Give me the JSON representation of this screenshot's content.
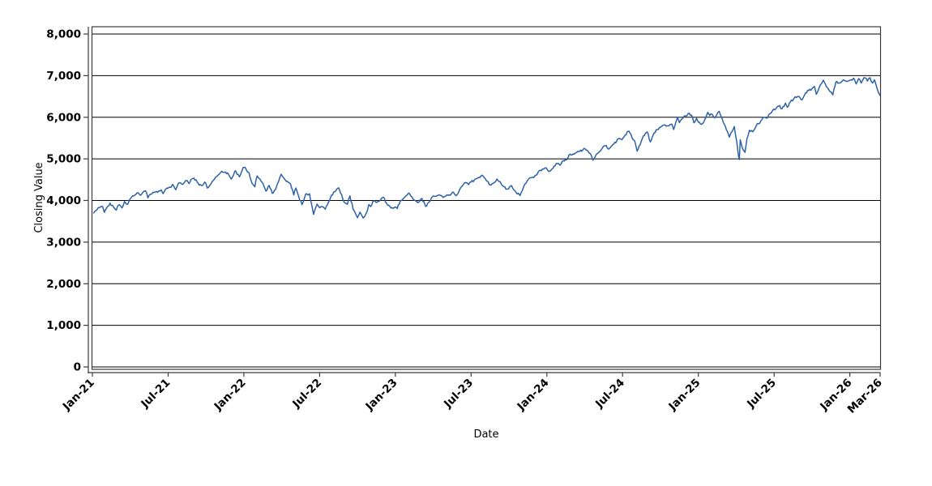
{
  "figure": {
    "background": "#ffffff",
    "title": ""
  },
  "chart_data": {
    "type": "line",
    "title": "",
    "xlabel": "Date",
    "ylabel": "Closing Value",
    "legend": "none",
    "grid": "horizontal",
    "line_color": "#2d61a6",
    "axis_color": "#3a3a3a",
    "grid_color": "#000000",
    "x_unit": "months-since-Jan-2021",
    "xlim": [
      0,
      62.4
    ],
    "ylim": [
      0,
      8000
    ],
    "y_ticks": [
      {
        "v": 0,
        "label": "0"
      },
      {
        "v": 1000,
        "label": "1,000"
      },
      {
        "v": 2000,
        "label": "2,000"
      },
      {
        "v": 3000,
        "label": "3,000"
      },
      {
        "v": 4000,
        "label": "4,000"
      },
      {
        "v": 5000,
        "label": "5,000"
      },
      {
        "v": 6000,
        "label": "6,000"
      },
      {
        "v": 7000,
        "label": "7,000"
      },
      {
        "v": 8000,
        "label": "8,000"
      }
    ],
    "x_ticks": [
      {
        "m": 0,
        "label": "Jan-21"
      },
      {
        "m": 6,
        "label": "Jul-21"
      },
      {
        "m": 12,
        "label": "Jan-22"
      },
      {
        "m": 18,
        "label": "Jul-22"
      },
      {
        "m": 24,
        "label": "Jan-23"
      },
      {
        "m": 30,
        "label": "Jul-23"
      },
      {
        "m": 36,
        "label": "Jan-24"
      },
      {
        "m": 42,
        "label": "Jul-24"
      },
      {
        "m": 48,
        "label": "Jan-25"
      },
      {
        "m": 54,
        "label": "Jul-25"
      },
      {
        "m": 60,
        "label": "Jan-26"
      },
      {
        "m": 62.4,
        "label": "Mar-26"
      }
    ],
    "series": [
      {
        "name": "Closing Value",
        "points": [
          [
            0.1,
            3700
          ],
          [
            0.3,
            3764
          ],
          [
            0.55,
            3826
          ],
          [
            0.8,
            3855
          ],
          [
            0.95,
            3714
          ],
          [
            1.15,
            3830
          ],
          [
            1.4,
            3935
          ],
          [
            1.6,
            3881
          ],
          [
            1.9,
            3768
          ],
          [
            2.1,
            3898
          ],
          [
            2.35,
            3821
          ],
          [
            2.55,
            3974
          ],
          [
            2.8,
            3910
          ],
          [
            3.1,
            4078
          ],
          [
            3.35,
            4128
          ],
          [
            3.55,
            4185
          ],
          [
            3.75,
            4134
          ],
          [
            3.97,
            4181
          ],
          [
            4.2,
            4233
          ],
          [
            4.4,
            4063
          ],
          [
            4.6,
            4156
          ],
          [
            4.8,
            4197
          ],
          [
            5.0,
            4204
          ],
          [
            5.25,
            4227
          ],
          [
            5.45,
            4255
          ],
          [
            5.6,
            4166
          ],
          [
            5.9,
            4298
          ],
          [
            6.15,
            4320
          ],
          [
            6.35,
            4385
          ],
          [
            6.6,
            4258
          ],
          [
            6.85,
            4422
          ],
          [
            7.1,
            4387
          ],
          [
            7.3,
            4437
          ],
          [
            7.5,
            4480
          ],
          [
            7.65,
            4406
          ],
          [
            7.9,
            4522
          ],
          [
            8.05,
            4537
          ],
          [
            8.3,
            4443
          ],
          [
            8.65,
            4358
          ],
          [
            8.9,
            4443
          ],
          [
            9.1,
            4300
          ],
          [
            9.35,
            4380
          ],
          [
            9.6,
            4486
          ],
          [
            9.85,
            4575
          ],
          [
            10.05,
            4630
          ],
          [
            10.25,
            4702
          ],
          [
            10.55,
            4683
          ],
          [
            10.85,
            4594
          ],
          [
            11.0,
            4513
          ],
          [
            11.15,
            4591
          ],
          [
            11.3,
            4712
          ],
          [
            11.65,
            4568
          ],
          [
            11.95,
            4793
          ],
          [
            12.1,
            4797
          ],
          [
            12.4,
            4670
          ],
          [
            12.65,
            4410
          ],
          [
            12.87,
            4327
          ],
          [
            13.05,
            4589
          ],
          [
            13.3,
            4502
          ],
          [
            13.55,
            4380
          ],
          [
            13.75,
            4225
          ],
          [
            14.0,
            4363
          ],
          [
            14.25,
            4171
          ],
          [
            14.5,
            4262
          ],
          [
            14.75,
            4460
          ],
          [
            14.95,
            4631
          ],
          [
            15.2,
            4525
          ],
          [
            15.45,
            4462
          ],
          [
            15.7,
            4393
          ],
          [
            15.95,
            4132
          ],
          [
            16.12,
            4300
          ],
          [
            16.35,
            4088
          ],
          [
            16.6,
            3900
          ],
          [
            16.72,
            3974
          ],
          [
            16.9,
            4158
          ],
          [
            17.2,
            4160
          ],
          [
            17.37,
            3900
          ],
          [
            17.52,
            3667
          ],
          [
            17.8,
            3912
          ],
          [
            18.0,
            3825
          ],
          [
            18.22,
            3854
          ],
          [
            18.45,
            3790
          ],
          [
            18.7,
            3961
          ],
          [
            18.95,
            4130
          ],
          [
            19.2,
            4210
          ],
          [
            19.5,
            4305
          ],
          [
            19.75,
            4140
          ],
          [
            19.95,
            3955
          ],
          [
            20.2,
            3908
          ],
          [
            20.4,
            4110
          ],
          [
            20.65,
            3790
          ],
          [
            21.0,
            3586
          ],
          [
            21.2,
            3720
          ],
          [
            21.45,
            3577
          ],
          [
            21.7,
            3700
          ],
          [
            21.9,
            3901
          ],
          [
            22.05,
            3856
          ],
          [
            22.3,
            3992
          ],
          [
            22.55,
            3958
          ],
          [
            22.85,
            4026
          ],
          [
            23.05,
            4080
          ],
          [
            23.3,
            3934
          ],
          [
            23.65,
            3818
          ],
          [
            23.95,
            3840
          ],
          [
            24.15,
            3808
          ],
          [
            24.4,
            3999
          ],
          [
            24.7,
            4071
          ],
          [
            25.05,
            4180
          ],
          [
            25.3,
            4090
          ],
          [
            25.6,
            3992
          ],
          [
            25.9,
            3970
          ],
          [
            26.1,
            4048
          ],
          [
            26.4,
            3856
          ],
          [
            26.7,
            3971
          ],
          [
            27.0,
            4109
          ],
          [
            27.25,
            4105
          ],
          [
            27.48,
            4138
          ],
          [
            27.8,
            4071
          ],
          [
            28.1,
            4136
          ],
          [
            28.35,
            4124
          ],
          [
            28.6,
            4198
          ],
          [
            28.8,
            4115
          ],
          [
            29.1,
            4267
          ],
          [
            29.5,
            4426
          ],
          [
            29.8,
            4382
          ],
          [
            30.0,
            4450
          ],
          [
            30.3,
            4510
          ],
          [
            30.6,
            4555
          ],
          [
            30.88,
            4607
          ],
          [
            31.2,
            4478
          ],
          [
            31.58,
            4370
          ],
          [
            31.85,
            4433
          ],
          [
            32.05,
            4516
          ],
          [
            32.3,
            4451
          ],
          [
            32.6,
            4330
          ],
          [
            32.9,
            4275
          ],
          [
            33.2,
            4358
          ],
          [
            33.5,
            4224
          ],
          [
            33.88,
            4117
          ],
          [
            34.2,
            4358
          ],
          [
            34.55,
            4514
          ],
          [
            34.8,
            4550
          ],
          [
            35.05,
            4595
          ],
          [
            35.4,
            4719
          ],
          [
            35.75,
            4755
          ],
          [
            35.95,
            4783
          ],
          [
            36.15,
            4697
          ],
          [
            36.5,
            4781
          ],
          [
            36.75,
            4891
          ],
          [
            37.05,
            4846
          ],
          [
            37.3,
            4958
          ],
          [
            37.55,
            4976
          ],
          [
            37.75,
            5089
          ],
          [
            38.0,
            5096
          ],
          [
            38.3,
            5150
          ],
          [
            38.6,
            5178
          ],
          [
            38.95,
            5254
          ],
          [
            39.2,
            5205
          ],
          [
            39.45,
            5123
          ],
          [
            39.65,
            4967
          ],
          [
            39.9,
            5100
          ],
          [
            40.2,
            5181
          ],
          [
            40.5,
            5308
          ],
          [
            40.7,
            5321
          ],
          [
            40.9,
            5235
          ],
          [
            41.05,
            5278
          ],
          [
            41.3,
            5354
          ],
          [
            41.6,
            5473
          ],
          [
            41.95,
            5460
          ],
          [
            42.2,
            5572
          ],
          [
            42.5,
            5667
          ],
          [
            42.75,
            5505
          ],
          [
            42.95,
            5436
          ],
          [
            43.15,
            5186
          ],
          [
            43.4,
            5344
          ],
          [
            43.65,
            5554
          ],
          [
            43.95,
            5648
          ],
          [
            44.2,
            5408
          ],
          [
            44.5,
            5626
          ],
          [
            44.75,
            5702
          ],
          [
            45.0,
            5762
          ],
          [
            45.3,
            5815
          ],
          [
            45.6,
            5797
          ],
          [
            45.9,
            5833
          ],
          [
            46.05,
            5705
          ],
          [
            46.35,
            6001
          ],
          [
            46.5,
            5871
          ],
          [
            46.75,
            5969
          ],
          [
            47.0,
            6032
          ],
          [
            47.2,
            6090
          ],
          [
            47.45,
            6051
          ],
          [
            47.65,
            5867
          ],
          [
            47.85,
            5974
          ],
          [
            48.0,
            5882
          ],
          [
            48.25,
            5827
          ],
          [
            48.5,
            5937
          ],
          [
            48.75,
            6119
          ],
          [
            48.9,
            6040
          ],
          [
            49.1,
            6071
          ],
          [
            49.3,
            5983
          ],
          [
            49.55,
            6115
          ],
          [
            49.65,
            6144
          ],
          [
            49.9,
            5955
          ],
          [
            50.15,
            5770
          ],
          [
            50.45,
            5522
          ],
          [
            50.7,
            5668
          ],
          [
            50.85,
            5777
          ],
          [
            51.05,
            5396
          ],
          [
            51.18,
            5074
          ],
          [
            51.25,
            4983
          ],
          [
            51.32,
            5457
          ],
          [
            51.48,
            5268
          ],
          [
            51.7,
            5158
          ],
          [
            51.85,
            5486
          ],
          [
            52.05,
            5687
          ],
          [
            52.3,
            5650
          ],
          [
            52.6,
            5803
          ],
          [
            52.78,
            5842
          ],
          [
            52.95,
            5912
          ],
          [
            53.2,
            6000
          ],
          [
            53.45,
            5982
          ],
          [
            53.7,
            6090
          ],
          [
            53.9,
            6173
          ],
          [
            54.2,
            6230
          ],
          [
            54.45,
            6280
          ],
          [
            54.62,
            6204
          ],
          [
            54.9,
            6339
          ],
          [
            55.05,
            6238
          ],
          [
            55.3,
            6373
          ],
          [
            55.6,
            6466
          ],
          [
            55.95,
            6502
          ],
          [
            56.2,
            6415
          ],
          [
            56.5,
            6587
          ],
          [
            56.75,
            6644
          ],
          [
            57.0,
            6688
          ],
          [
            57.2,
            6740
          ],
          [
            57.35,
            6553
          ],
          [
            57.6,
            6735
          ],
          [
            57.9,
            6891
          ],
          [
            58.15,
            6729
          ],
          [
            58.42,
            6618
          ],
          [
            58.65,
            6538
          ],
          [
            58.9,
            6849
          ],
          [
            59.2,
            6829
          ],
          [
            59.5,
            6900
          ],
          [
            59.8,
            6860
          ],
          [
            59.95,
            6880
          ],
          [
            60.1,
            6902
          ],
          [
            60.3,
            6940
          ],
          [
            60.5,
            6800
          ],
          [
            60.7,
            6930
          ],
          [
            60.9,
            6822
          ],
          [
            61.05,
            6912
          ],
          [
            61.22,
            6945
          ],
          [
            61.4,
            6870
          ],
          [
            61.6,
            6950
          ],
          [
            61.8,
            6822
          ],
          [
            61.95,
            6900
          ],
          [
            62.05,
            6812
          ],
          [
            62.15,
            6700
          ],
          [
            62.25,
            6608
          ],
          [
            62.33,
            6560
          ],
          [
            62.4,
            6524
          ]
        ]
      }
    ]
  }
}
